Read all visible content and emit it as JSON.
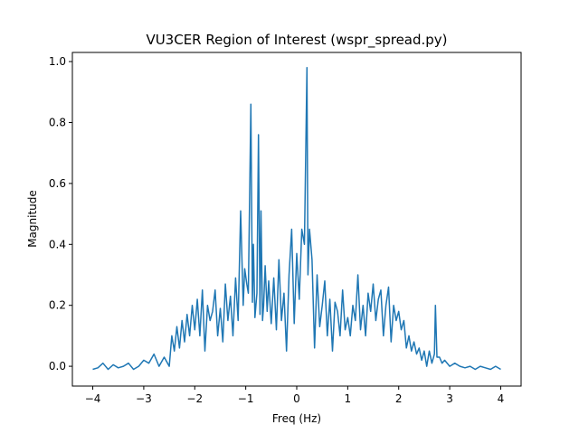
{
  "chart_data": {
    "type": "line",
    "title": "VU3CER Region of Interest (wspr_spread.py)",
    "xlabel": "Freq (Hz)",
    "ylabel": "Magnitude",
    "xlim": [
      -4.4,
      4.4
    ],
    "ylim": [
      -0.065,
      1.03
    ],
    "xticks": [
      -4,
      -3,
      -2,
      -1,
      0,
      1,
      2,
      3,
      4
    ],
    "xtick_labels": [
      "−4",
      "−3",
      "−2",
      "−1",
      "0",
      "1",
      "2",
      "3",
      "4"
    ],
    "yticks": [
      0.0,
      0.2,
      0.4,
      0.6,
      0.8,
      1.0
    ],
    "ytick_labels": [
      "0.0",
      "0.2",
      "0.4",
      "0.6",
      "0.8",
      "1.0"
    ],
    "grid": false,
    "line_color": "#1f77b4",
    "series": [
      {
        "x": [
          -4.0,
          -3.9,
          -3.8,
          -3.7,
          -3.6,
          -3.5,
          -3.4,
          -3.3,
          -3.2,
          -3.1,
          -3.0,
          -2.9,
          -2.8,
          -2.7,
          -2.6,
          -2.5,
          -2.45,
          -2.4,
          -2.35,
          -2.3,
          -2.25,
          -2.2,
          -2.15,
          -2.1,
          -2.05,
          -2.0,
          -1.95,
          -1.9,
          -1.85,
          -1.8,
          -1.75,
          -1.7,
          -1.65,
          -1.6,
          -1.55,
          -1.5,
          -1.45,
          -1.4,
          -1.35,
          -1.3,
          -1.25,
          -1.2,
          -1.15,
          -1.1,
          -1.05,
          -1.02,
          -0.98,
          -0.95,
          -0.9,
          -0.87,
          -0.85,
          -0.82,
          -0.78,
          -0.75,
          -0.72,
          -0.7,
          -0.67,
          -0.65,
          -0.62,
          -0.58,
          -0.55,
          -0.5,
          -0.45,
          -0.4,
          -0.35,
          -0.3,
          -0.25,
          -0.2,
          -0.15,
          -0.1,
          -0.05,
          0.0,
          0.05,
          0.1,
          0.15,
          0.2,
          0.22,
          0.25,
          0.3,
          0.35,
          0.4,
          0.45,
          0.5,
          0.55,
          0.6,
          0.65,
          0.7,
          0.75,
          0.8,
          0.85,
          0.9,
          0.95,
          1.0,
          1.05,
          1.1,
          1.15,
          1.2,
          1.25,
          1.3,
          1.35,
          1.4,
          1.45,
          1.5,
          1.55,
          1.6,
          1.65,
          1.7,
          1.75,
          1.8,
          1.85,
          1.9,
          1.95,
          2.0,
          2.05,
          2.1,
          2.15,
          2.2,
          2.25,
          2.3,
          2.35,
          2.4,
          2.45,
          2.5,
          2.55,
          2.6,
          2.65,
          2.7,
          2.72,
          2.75,
          2.8,
          2.85,
          2.9,
          3.0,
          3.1,
          3.2,
          3.3,
          3.4,
          3.5,
          3.6,
          3.7,
          3.8,
          3.9,
          4.0
        ],
        "y": [
          -0.01,
          -0.005,
          0.01,
          -0.01,
          0.005,
          -0.005,
          0.0,
          0.01,
          -0.01,
          0.0,
          0.02,
          0.01,
          0.04,
          0.0,
          0.03,
          0.0,
          0.1,
          0.05,
          0.13,
          0.06,
          0.15,
          0.08,
          0.17,
          0.1,
          0.2,
          0.12,
          0.22,
          0.1,
          0.25,
          0.05,
          0.2,
          0.15,
          0.18,
          0.25,
          0.1,
          0.19,
          0.08,
          0.27,
          0.15,
          0.23,
          0.1,
          0.29,
          0.15,
          0.51,
          0.2,
          0.32,
          0.27,
          0.24,
          0.86,
          0.21,
          0.4,
          0.16,
          0.24,
          0.76,
          0.17,
          0.51,
          0.15,
          0.2,
          0.33,
          0.18,
          0.28,
          0.14,
          0.29,
          0.12,
          0.35,
          0.15,
          0.24,
          0.05,
          0.3,
          0.45,
          0.14,
          0.37,
          0.22,
          0.45,
          0.4,
          0.98,
          0.3,
          0.45,
          0.35,
          0.06,
          0.3,
          0.13,
          0.2,
          0.28,
          0.1,
          0.22,
          0.05,
          0.21,
          0.18,
          0.1,
          0.25,
          0.12,
          0.16,
          0.1,
          0.2,
          0.15,
          0.3,
          0.12,
          0.2,
          0.1,
          0.24,
          0.18,
          0.27,
          0.15,
          0.22,
          0.25,
          0.1,
          0.2,
          0.26,
          0.08,
          0.2,
          0.15,
          0.18,
          0.12,
          0.15,
          0.06,
          0.1,
          0.05,
          0.08,
          0.04,
          0.06,
          0.02,
          0.05,
          0.0,
          0.05,
          0.01,
          0.04,
          0.2,
          0.03,
          0.03,
          0.01,
          0.02,
          0.0,
          0.01,
          0.0,
          -0.005,
          0.0,
          -0.01,
          0.0,
          -0.005,
          -0.01,
          0.0,
          -0.01
        ]
      }
    ]
  }
}
